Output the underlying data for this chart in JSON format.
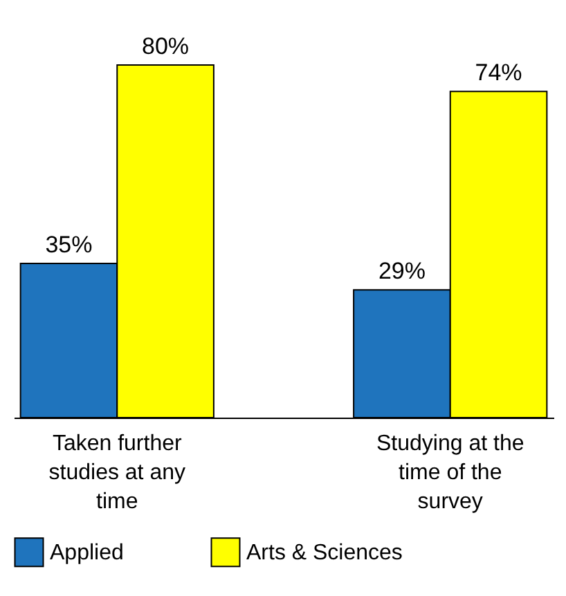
{
  "chart_data": {
    "type": "bar",
    "categories": [
      "Taken further studies at any time",
      "Studying at the time of the survey"
    ],
    "series": [
      {
        "name": "Applied",
        "color": "#1f74bd",
        "values": [
          35,
          29
        ],
        "value_labels": [
          "35%",
          "29%"
        ]
      },
      {
        "name": "Arts & Sciences",
        "color": "#ffff00",
        "values": [
          80,
          74
        ],
        "value_labels": [
          "80%",
          "74%"
        ]
      }
    ],
    "legend": "bottom"
  }
}
